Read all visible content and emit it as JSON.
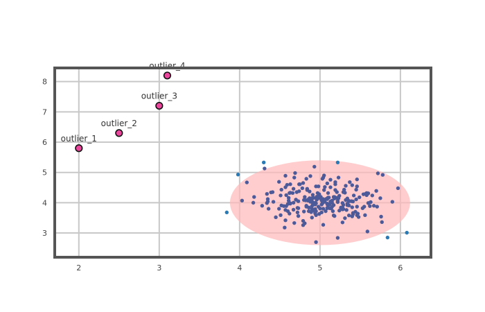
{
  "chart_data": {
    "type": "scatter",
    "title": "",
    "xlabel": "",
    "ylabel": "",
    "xlim": [
      1.7,
      6.38
    ],
    "ylim": [
      2.2,
      8.45
    ],
    "xticks": [
      2,
      3,
      4,
      5,
      6
    ],
    "yticks": [
      3,
      4,
      5,
      6,
      7,
      8
    ],
    "grid": true,
    "legend": "none",
    "colors": {
      "cluster": "#4c5a9a",
      "fringe": "#2a7ab5",
      "outlier_fill": "#e8479c",
      "outlier_edge": "#111111",
      "ellipse_fill": "#ffb8b8",
      "grid": "#c8c8c8",
      "frame": "#555555"
    },
    "ellipse": {
      "cx": 5.0,
      "cy": 4.0,
      "rx": 1.12,
      "ry": 1.4
    },
    "outliers": [
      {
        "x": 2.0,
        "y": 5.8,
        "label": "outlier_1"
      },
      {
        "x": 2.5,
        "y": 6.3,
        "label": "outlier_2"
      },
      {
        "x": 3.0,
        "y": 7.2,
        "label": "outlier_3"
      },
      {
        "x": 3.1,
        "y": 8.2,
        "label": "outlier_4"
      }
    ],
    "fringe_points": [
      {
        "x": 3.84,
        "y": 3.68
      },
      {
        "x": 3.98,
        "y": 4.93
      },
      {
        "x": 4.3,
        "y": 5.33
      },
      {
        "x": 5.84,
        "y": 2.85
      },
      {
        "x": 6.08,
        "y": 3.01
      },
      {
        "x": 5.22,
        "y": 5.33
      }
    ],
    "cluster_points": [
      [
        4.63,
        4.61
      ],
      [
        4.96,
        4.15
      ],
      [
        5.21,
        4.16
      ],
      [
        5.32,
        4.56
      ],
      [
        4.72,
        3.68
      ],
      [
        5.48,
        3.53
      ],
      [
        4.95,
        4.54
      ],
      [
        5.65,
        4.24
      ],
      [
        5.67,
        3.9
      ],
      [
        5.9,
        4.03
      ],
      [
        4.28,
        3.9
      ],
      [
        4.35,
        4.12
      ],
      [
        5.24,
        4.23
      ],
      [
        4.58,
        4.25
      ],
      [
        4.84,
        4.42
      ],
      [
        4.7,
        4.1
      ],
      [
        4.9,
        3.78
      ],
      [
        4.68,
        4.83
      ],
      [
        5.14,
        3.81
      ],
      [
        4.99,
        3.63
      ],
      [
        5.15,
        4.07
      ],
      [
        5.06,
        4.03
      ],
      [
        4.52,
        4.43
      ],
      [
        4.81,
        3.32
      ],
      [
        5.06,
        4.52
      ],
      [
        5.28,
        3.84
      ],
      [
        4.55,
        3.89
      ],
      [
        4.35,
        4.04
      ],
      [
        4.18,
        4.19
      ],
      [
        4.9,
        3.89
      ],
      [
        4.92,
        3.94
      ],
      [
        5.23,
        4.83
      ],
      [
        4.67,
        3.77
      ],
      [
        4.82,
        4.08
      ],
      [
        4.73,
        3.82
      ],
      [
        4.71,
        4.35
      ],
      [
        5.56,
        3.59
      ],
      [
        4.9,
        3.51
      ],
      [
        5.57,
        4.3
      ],
      [
        5.18,
        3.56
      ],
      [
        4.66,
        4.32
      ],
      [
        5.17,
        4.19
      ],
      [
        4.34,
        3.99
      ],
      [
        5.6,
        3.99
      ],
      [
        5.46,
        3.59
      ],
      [
        5.19,
        4.68
      ],
      [
        4.57,
        3.76
      ],
      [
        4.92,
        4.16
      ],
      [
        5.04,
        3.27
      ],
      [
        4.73,
        4.05
      ],
      [
        5.36,
        4.05
      ],
      [
        4.72,
        3.83
      ],
      [
        4.99,
        4.25
      ],
      [
        5.02,
        4.08
      ],
      [
        5.32,
        4.09
      ],
      [
        4.85,
        4.07
      ],
      [
        4.62,
        4.32
      ],
      [
        5.41,
        3.62
      ],
      [
        5.11,
        4.17
      ],
      [
        5.0,
        4.15
      ],
      [
        4.67,
        4.46
      ],
      [
        4.61,
        4.07
      ],
      [
        5.31,
        3.49
      ],
      [
        4.94,
        3.94
      ],
      [
        4.91,
        3.98
      ],
      [
        4.36,
        3.8
      ],
      [
        4.74,
        4.38
      ],
      [
        4.74,
        4.61
      ],
      [
        5.28,
        3.78
      ],
      [
        4.78,
        4.48
      ],
      [
        5.04,
        3.8
      ],
      [
        5.33,
        3.76
      ],
      [
        5.62,
        3.89
      ],
      [
        4.92,
        3.99
      ],
      [
        5.12,
        3.82
      ],
      [
        5.53,
        3.82
      ],
      [
        4.7,
        4.1
      ],
      [
        5.05,
        4.42
      ],
      [
        5.09,
        4.64
      ],
      [
        5.09,
        3.82
      ],
      [
        5.47,
        3.64
      ],
      [
        4.62,
        3.64
      ],
      [
        4.87,
        4.15
      ],
      [
        5.09,
        4.12
      ],
      [
        5.41,
        3.66
      ],
      [
        4.39,
        4.34
      ],
      [
        4.8,
        3.71
      ],
      [
        5.18,
        4.14
      ],
      [
        4.88,
        4.03
      ],
      [
        5.17,
        3.58
      ],
      [
        5.0,
        3.81
      ],
      [
        4.34,
        4.29
      ],
      [
        4.57,
        3.42
      ],
      [
        5.03,
        4.79
      ],
      [
        5.01,
        4.19
      ],
      [
        5.3,
        4.43
      ],
      [
        5.6,
        4.31
      ],
      [
        4.49,
        4.69
      ],
      [
        4.95,
        3.98
      ],
      [
        4.45,
        3.52
      ],
      [
        4.91,
        4.26
      ],
      [
        5.31,
        4.33
      ],
      [
        5.37,
        4.68
      ],
      [
        4.8,
        4.09
      ],
      [
        5.12,
        3.95
      ],
      [
        5.02,
        3.94
      ],
      [
        4.87,
        4.37
      ],
      [
        4.63,
        3.98
      ],
      [
        4.73,
        3.56
      ],
      [
        5.71,
        3.87
      ],
      [
        4.9,
        4.15
      ],
      [
        5.15,
        3.87
      ],
      [
        4.83,
        4.79
      ],
      [
        4.85,
        4.1
      ],
      [
        5.09,
        3.97
      ],
      [
        4.51,
        3.59
      ],
      [
        4.79,
        3.26
      ],
      [
        5.28,
        3.35
      ],
      [
        5.18,
        4.19
      ],
      [
        5.22,
        4.06
      ],
      [
        5.36,
        3.58
      ],
      [
        4.89,
        4.11
      ],
      [
        5.34,
        3.92
      ],
      [
        4.95,
        3.59
      ],
      [
        4.68,
        3.33
      ],
      [
        5.58,
        4.32
      ],
      [
        4.96,
        4.11
      ],
      [
        5.55,
        3.87
      ],
      [
        4.52,
        3.91
      ],
      [
        5.36,
        3.91
      ],
      [
        4.42,
        4.03
      ],
      [
        4.79,
        3.4
      ],
      [
        5.02,
        3.68
      ],
      [
        5.54,
        4.28
      ],
      [
        5.03,
        3.98
      ],
      [
        5.35,
        3.93
      ],
      [
        5.13,
        4.76
      ],
      [
        5.42,
        4.24
      ],
      [
        4.96,
        4.1
      ],
      [
        5.63,
        4.02
      ],
      [
        5.29,
        3.93
      ],
      [
        4.86,
        3.84
      ],
      [
        5.49,
        4.18
      ],
      [
        5.19,
        4.42
      ],
      [
        5.34,
        4.14
      ],
      [
        5.1,
        4.32
      ],
      [
        4.67,
        4.0
      ],
      [
        5.24,
        3.74
      ],
      [
        5.17,
        3.92
      ],
      [
        4.51,
        4.24
      ],
      [
        5.26,
        3.84
      ],
      [
        5.7,
        4.39
      ],
      [
        5.03,
        4.02
      ],
      [
        4.98,
        4.16
      ],
      [
        5.35,
        3.93
      ],
      [
        4.96,
        4.2
      ],
      [
        5.46,
        3.87
      ],
      [
        5.22,
        4.02
      ],
      [
        4.98,
        4.54
      ],
      [
        4.58,
        3.89
      ],
      [
        4.79,
        4.65
      ],
      [
        4.89,
        3.69
      ],
      [
        5.29,
        4.35
      ],
      [
        4.9,
        3.8
      ],
      [
        4.6,
        3.96
      ],
      [
        5.1,
        4.17
      ],
      [
        4.95,
        3.72
      ],
      [
        5.75,
        4.15
      ],
      [
        4.83,
        3.87
      ],
      [
        4.93,
        3.73
      ],
      [
        5.41,
        4.04
      ],
      [
        5.36,
        4.06
      ],
      [
        4.99,
        4.28
      ],
      [
        5.4,
        3.55
      ],
      [
        4.75,
        4.61
      ],
      [
        5.76,
        3.54
      ],
      [
        4.6,
        3.72
      ],
      [
        4.83,
        3.9
      ],
      [
        5.34,
        3.97
      ],
      [
        5.58,
        4.25
      ],
      [
        5.08,
        4.13
      ],
      [
        4.94,
        3.79
      ],
      [
        5.13,
        4.51
      ],
      [
        5.45,
        4.11
      ],
      [
        5.16,
        3.72
      ],
      [
        4.57,
        4.51
      ],
      [
        5.09,
        3.83
      ],
      [
        5.14,
        4.04
      ],
      [
        4.41,
        4.35
      ],
      [
        5.09,
        3.95
      ],
      [
        5.04,
        4.12
      ],
      [
        4.63,
        3.97
      ],
      [
        5.15,
        4.0
      ],
      [
        4.9,
        4.05
      ],
      [
        4.81,
        4.19
      ],
      [
        4.97,
        4.32
      ],
      [
        4.94,
        4.0
      ],
      [
        4.93,
        5.19
      ],
      [
        4.84,
        4.46
      ],
      [
        5.04,
        4.83
      ],
      [
        5.39,
        4.05
      ],
      [
        4.61,
        4.16
      ],
      [
        5.03,
        4.09
      ],
      [
        5.44,
        3.7
      ],
      [
        4.98,
        3.87
      ],
      [
        4.49,
        3.8
      ],
      [
        5.23,
        4.15
      ],
      [
        4.94,
        3.65
      ],
      [
        5.1,
        3.92
      ],
      [
        5.28,
        3.99
      ],
      [
        5.58,
        4.27
      ],
      [
        5.13,
        4.04
      ],
      [
        4.59,
        4.59
      ],
      [
        5.29,
        3.79
      ],
      [
        4.86,
        3.72
      ],
      [
        5.46,
        4.54
      ],
      [
        5.21,
        4.35
      ],
      [
        4.09,
        4.67
      ],
      [
        4.17,
        4.0
      ],
      [
        4.63,
        4.33
      ],
      [
        5.4,
        3.85
      ],
      [
        5.45,
        4.43
      ],
      [
        5.07,
        3.72
      ],
      [
        5.4,
        4.58
      ],
      [
        5.78,
        4.92
      ],
      [
        5.77,
        3.36
      ],
      [
        5.97,
        4.48
      ],
      [
        4.95,
        2.7
      ],
      [
        5.22,
        2.84
      ],
      [
        4.56,
        3.18
      ],
      [
        4.69,
        4.98
      ],
      [
        4.88,
        4.88
      ],
      [
        5.46,
        4.77
      ],
      [
        5.05,
        4.9
      ],
      [
        5.72,
        4.97
      ],
      [
        4.31,
        5.13
      ],
      [
        4.03,
        4.07
      ],
      [
        5.19,
        4.61
      ],
      [
        4.57,
        4.89
      ],
      [
        5.59,
        3.05
      ]
    ]
  }
}
